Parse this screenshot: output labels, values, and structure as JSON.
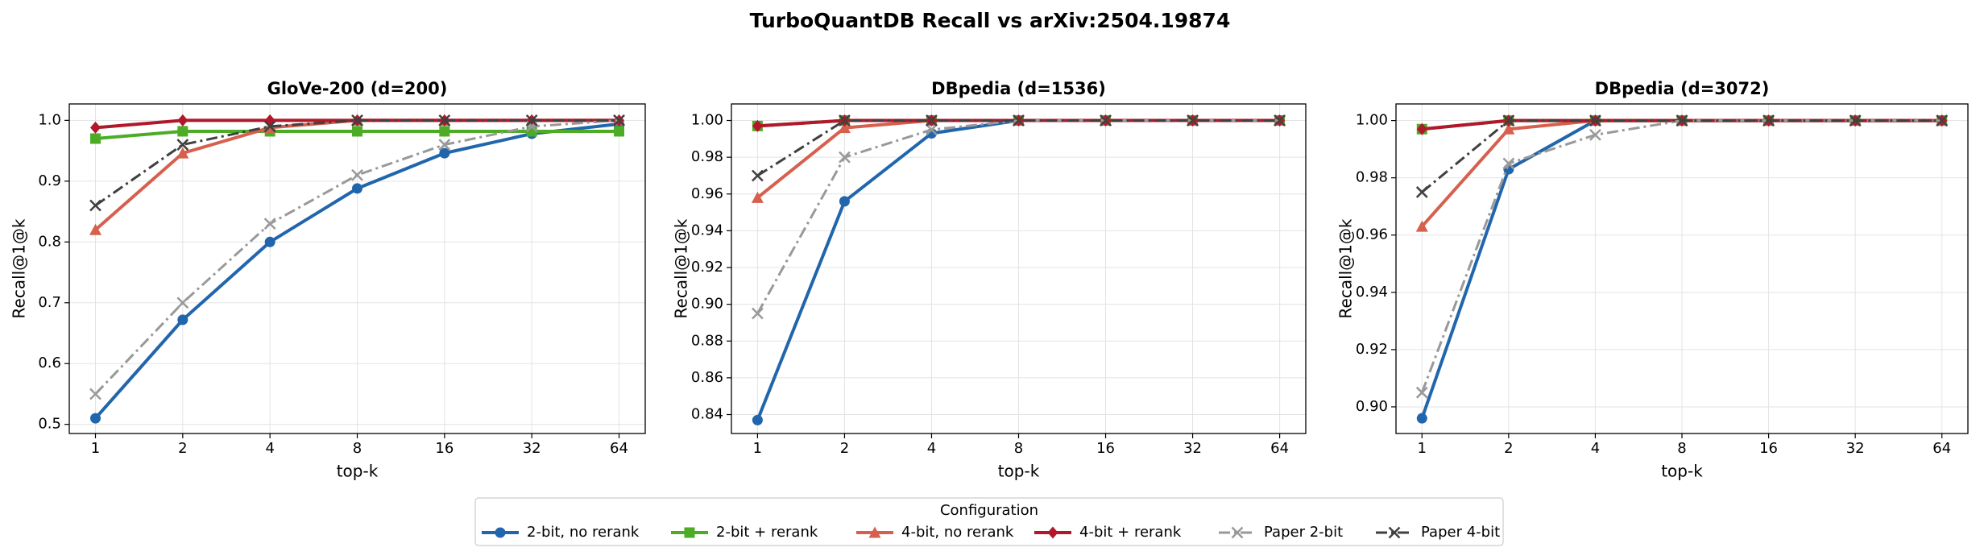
{
  "title": "TurboQuantDB Recall vs arXiv:2504.19874",
  "legend": {
    "title": "Configuration",
    "loc": "lower center"
  },
  "chart_data": [
    {
      "type": "line",
      "title": "GloVe-200  (d=200)",
      "xlabel": "top-k",
      "ylabel": "Recall@1@k",
      "categories": [
        "1",
        "2",
        "4",
        "8",
        "16",
        "32",
        "64"
      ],
      "ylim": [
        0.485,
        1.027
      ],
      "yticks": [
        0.5,
        0.6,
        0.7,
        0.8,
        0.9,
        {
          "value": 1,
          "label": "1.0"
        }
      ],
      "grid": true,
      "series": [
        {
          "name": "2-bit, no rerank",
          "color": "#2166ac",
          "marker": "circle",
          "linestyle": "solid",
          "values": [
            0.51,
            0.672,
            0.8,
            0.888,
            0.946,
            0.978,
            0.994
          ]
        },
        {
          "name": "2-bit + rerank",
          "color": "#4dac26",
          "marker": "square",
          "linestyle": "solid",
          "values": [
            0.97,
            0.982,
            0.982,
            0.982,
            0.982,
            0.982,
            0.982
          ]
        },
        {
          "name": "4-bit, no rerank",
          "color": "#d6604d",
          "marker": "triangle",
          "linestyle": "solid",
          "values": [
            0.82,
            0.946,
            0.988,
            1.0,
            1.0,
            1.0,
            1.0
          ]
        },
        {
          "name": "4-bit + rerank",
          "color": "#b2182b",
          "marker": "diamond",
          "linestyle": "solid",
          "values": [
            0.988,
            1.0,
            1.0,
            1.0,
            1.0,
            1.0,
            1.0
          ]
        },
        {
          "name": "Paper 2-bit",
          "color": "#999999",
          "marker": "x",
          "linestyle": "dashdot",
          "values": [
            0.55,
            0.7,
            0.83,
            0.91,
            0.96,
            0.99,
            1.0
          ]
        },
        {
          "name": "Paper 4-bit",
          "color": "#404040",
          "marker": "x",
          "linestyle": "dashdot",
          "values": [
            0.86,
            0.96,
            0.99,
            1.0,
            1.0,
            1.0,
            1.0
          ]
        }
      ]
    },
    {
      "type": "line",
      "title": "DBpedia  (d=1536)",
      "xlabel": "top-k",
      "ylabel": "Recall@1@k",
      "categories": [
        "1",
        "2",
        "4",
        "8",
        "16",
        "32",
        "64"
      ],
      "ylim": [
        0.8297,
        1.009
      ],
      "yticks": [
        0.84,
        0.86,
        0.88,
        {
          "value": 0.9,
          "label": "0.90"
        },
        0.92,
        0.94,
        0.96,
        0.98,
        {
          "value": 1,
          "label": "1.00"
        }
      ],
      "grid": true,
      "series": [
        {
          "name": "2-bit, no rerank",
          "color": "#2166ac",
          "marker": "circle",
          "linestyle": "solid",
          "values": [
            0.837,
            0.956,
            0.993,
            1.0,
            1.0,
            1.0,
            1.0
          ]
        },
        {
          "name": "2-bit + rerank",
          "color": "#4dac26",
          "marker": "square",
          "linestyle": "solid",
          "values": [
            0.997,
            1.0,
            1.0,
            1.0,
            1.0,
            1.0,
            1.0
          ]
        },
        {
          "name": "4-bit, no rerank",
          "color": "#d6604d",
          "marker": "triangle",
          "linestyle": "solid",
          "values": [
            0.958,
            0.996,
            1.0,
            1.0,
            1.0,
            1.0,
            1.0
          ]
        },
        {
          "name": "4-bit + rerank",
          "color": "#b2182b",
          "marker": "diamond",
          "linestyle": "solid",
          "values": [
            0.997,
            1.0,
            1.0,
            1.0,
            1.0,
            1.0,
            1.0
          ]
        },
        {
          "name": "Paper 2-bit",
          "color": "#999999",
          "marker": "x",
          "linestyle": "dashdot",
          "values": [
            0.895,
            0.98,
            0.995,
            1.0,
            1.0,
            1.0,
            1.0
          ]
        },
        {
          "name": "Paper 4-bit",
          "color": "#404040",
          "marker": "x",
          "linestyle": "dashdot",
          "values": [
            0.97,
            1.0,
            1.0,
            1.0,
            1.0,
            1.0,
            1.0
          ]
        }
      ]
    },
    {
      "type": "line",
      "title": "DBpedia  (d=3072)",
      "xlabel": "top-k",
      "ylabel": "Recall@1@k",
      "categories": [
        "1",
        "2",
        "4",
        "8",
        "16",
        "32",
        "64"
      ],
      "ylim": [
        0.8907,
        1.0058
      ],
      "yticks": [
        {
          "value": 0.9,
          "label": "0.90"
        },
        0.92,
        0.94,
        0.96,
        0.98,
        {
          "value": 1,
          "label": "1.00"
        }
      ],
      "grid": true,
      "series": [
        {
          "name": "2-bit, no rerank",
          "color": "#2166ac",
          "marker": "circle",
          "linestyle": "solid",
          "values": [
            0.896,
            0.983,
            1.0,
            1.0,
            1.0,
            1.0,
            1.0
          ]
        },
        {
          "name": "2-bit + rerank",
          "color": "#4dac26",
          "marker": "square",
          "linestyle": "solid",
          "values": [
            0.997,
            1.0,
            1.0,
            1.0,
            1.0,
            1.0,
            1.0
          ]
        },
        {
          "name": "4-bit, no rerank",
          "color": "#d6604d",
          "marker": "triangle",
          "linestyle": "solid",
          "values": [
            0.963,
            0.997,
            1.0,
            1.0,
            1.0,
            1.0,
            1.0
          ]
        },
        {
          "name": "4-bit + rerank",
          "color": "#b2182b",
          "marker": "diamond",
          "linestyle": "solid",
          "values": [
            0.997,
            1.0,
            1.0,
            1.0,
            1.0,
            1.0,
            1.0
          ]
        },
        {
          "name": "Paper 2-bit",
          "color": "#999999",
          "marker": "x",
          "linestyle": "dashdot",
          "values": [
            0.905,
            0.985,
            0.995,
            1.0,
            1.0,
            1.0,
            1.0
          ]
        },
        {
          "name": "Paper 4-bit",
          "color": "#404040",
          "marker": "x",
          "linestyle": "dashdot",
          "values": [
            0.975,
            1.0,
            1.0,
            1.0,
            1.0,
            1.0,
            1.0
          ]
        }
      ]
    }
  ]
}
